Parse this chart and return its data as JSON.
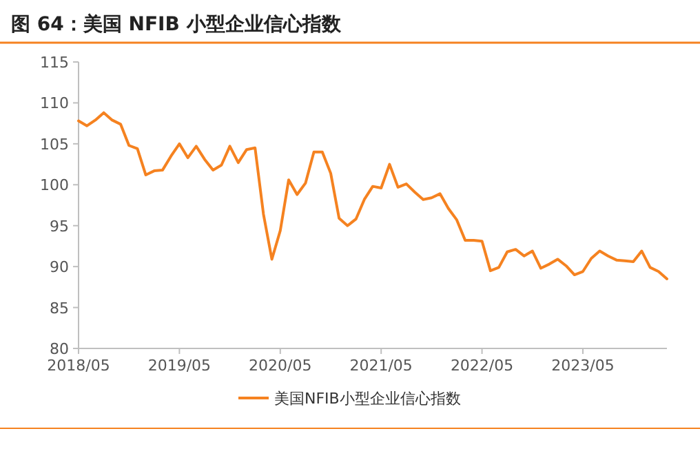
{
  "chart_data": {
    "type": "line",
    "title": "图 64：美国 NFIB 小型企业信心指数",
    "x": [
      "2018-05",
      "2018-06",
      "2018-07",
      "2018-08",
      "2018-09",
      "2018-10",
      "2018-11",
      "2018-12",
      "2019-01",
      "2019-02",
      "2019-03",
      "2019-04",
      "2019-05",
      "2019-06",
      "2019-07",
      "2019-08",
      "2019-09",
      "2019-10",
      "2019-11",
      "2019-12",
      "2020-01",
      "2020-02",
      "2020-03",
      "2020-04",
      "2020-05",
      "2020-06",
      "2020-07",
      "2020-08",
      "2020-09",
      "2020-10",
      "2020-11",
      "2020-12",
      "2021-01",
      "2021-02",
      "2021-03",
      "2021-04",
      "2021-05",
      "2021-06",
      "2021-07",
      "2021-08",
      "2021-09",
      "2021-10",
      "2021-11",
      "2021-12",
      "2022-01",
      "2022-02",
      "2022-03",
      "2022-04",
      "2022-05",
      "2022-06",
      "2022-07",
      "2022-08",
      "2022-09",
      "2022-10",
      "2022-11",
      "2022-12",
      "2023-01",
      "2023-02",
      "2023-03",
      "2023-04",
      "2023-05",
      "2023-06",
      "2023-07",
      "2023-08",
      "2023-09",
      "2023-10",
      "2023-11",
      "2023-12",
      "2024-01",
      "2024-02",
      "2024-03"
    ],
    "series": [
      {
        "name": "美国NFIB小型企业信心指数",
        "color": "#f58220",
        "values": [
          107.8,
          107.2,
          107.9,
          108.8,
          107.9,
          107.4,
          104.8,
          104.4,
          101.2,
          101.7,
          101.8,
          103.5,
          105.0,
          103.3,
          104.7,
          103.1,
          101.8,
          102.4,
          104.7,
          102.7,
          104.3,
          104.5,
          96.4,
          90.9,
          94.4,
          100.6,
          98.8,
          100.2,
          104.0,
          104.0,
          101.4,
          95.9,
          95.0,
          95.8,
          98.2,
          99.8,
          99.6,
          102.5,
          99.7,
          100.1,
          99.1,
          98.2,
          98.4,
          98.9,
          97.1,
          95.7,
          93.2,
          93.2,
          93.1,
          89.5,
          89.9,
          91.8,
          92.1,
          91.3,
          91.9,
          89.8,
          90.3,
          90.9,
          90.1,
          89.0,
          89.4,
          91.0,
          91.9,
          91.3,
          90.8,
          90.7,
          90.6,
          91.9,
          89.9,
          89.4,
          88.5
        ]
      }
    ],
    "xlim": [
      "2018-05",
      "2024-03"
    ],
    "xticks": [
      {
        "value": "2018-05",
        "label": "2018/05"
      },
      {
        "value": "2019-05",
        "label": "2019/05"
      },
      {
        "value": "2020-05",
        "label": "2020/05"
      },
      {
        "value": "2021-05",
        "label": "2021/05"
      },
      {
        "value": "2022-05",
        "label": "2022/05"
      },
      {
        "value": "2023-05",
        "label": "2023/05"
      }
    ],
    "ylim": [
      80,
      115
    ],
    "yticks": [
      80,
      85,
      90,
      95,
      100,
      105,
      110,
      115
    ],
    "grid": false,
    "legend": "bottom",
    "marker": "none",
    "line_style": "solid"
  }
}
